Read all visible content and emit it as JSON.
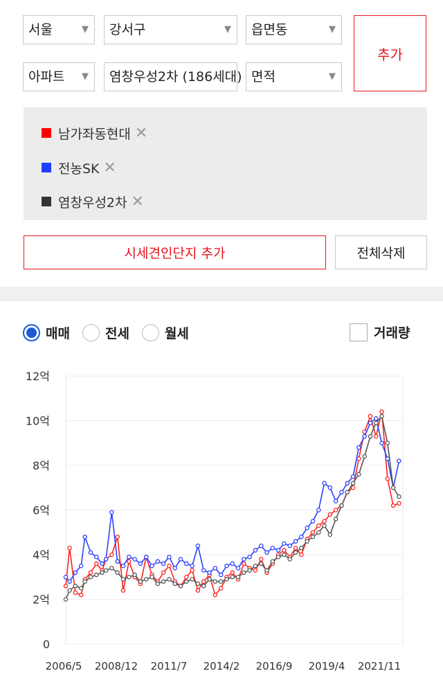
{
  "filters": {
    "city": "서울",
    "district": "강서구",
    "dong": "읍면동",
    "type": "아파트",
    "complex": "염창우성2차 (186세대)",
    "area": "면적",
    "add_label": "추가"
  },
  "compare_list": [
    {
      "name": "남가좌동현대",
      "color": "#ff0000"
    },
    {
      "name": "전농SK",
      "color": "#1f3fff"
    },
    {
      "name": "염창우성2차",
      "color": "#333333"
    }
  ],
  "remove_icon": "close-icon",
  "actions": {
    "add_complex": "시세견인단지 추가",
    "delete_all": "전체삭제"
  },
  "trade_types": [
    "매매",
    "전세",
    "월세"
  ],
  "selected_trade": "매매",
  "volume_label": "거래량",
  "chart_data": {
    "type": "line",
    "y_ticks": [
      "0",
      "2억",
      "4억",
      "6억",
      "8억",
      "10억",
      "12억"
    ],
    "y_range": [
      0,
      12
    ],
    "x_ticks": [
      "2006/5",
      "2008/12",
      "2011/7",
      "2014/2",
      "2016/9",
      "2019/4",
      "2021/11"
    ],
    "x_range": [
      2006.0,
      2023.6
    ],
    "grid": true,
    "series": [
      {
        "name": "남가좌동현대",
        "color": "#ff2020",
        "x": [
          2006.0,
          2006.2,
          2006.5,
          2006.8,
          2007.0,
          2007.3,
          2007.6,
          2007.9,
          2008.1,
          2008.4,
          2008.7,
          2009.0,
          2009.3,
          2009.6,
          2009.9,
          2010.2,
          2010.5,
          2010.8,
          2011.1,
          2011.4,
          2011.7,
          2012.0,
          2012.3,
          2012.6,
          2012.9,
          2013.2,
          2013.5,
          2013.8,
          2014.1,
          2014.4,
          2014.7,
          2015.0,
          2015.3,
          2015.6,
          2015.9,
          2016.2,
          2016.5,
          2016.8,
          2017.1,
          2017.4,
          2017.7,
          2018.0,
          2018.3,
          2018.6,
          2018.9,
          2019.2,
          2019.5,
          2019.8,
          2020.1,
          2020.4,
          2020.7,
          2021.0,
          2021.3,
          2021.6,
          2021.9,
          2022.2,
          2022.5,
          2022.8,
          2023.1,
          2023.4
        ],
        "y": [
          2.6,
          4.3,
          2.3,
          2.2,
          2.9,
          3.2,
          3.6,
          3.3,
          3.8,
          4.0,
          4.8,
          2.4,
          3.7,
          3.0,
          2.7,
          3.9,
          3.1,
          2.8,
          3.2,
          3.5,
          2.8,
          2.6,
          3.0,
          3.3,
          2.4,
          2.8,
          3.1,
          2.2,
          2.5,
          3.0,
          3.2,
          2.9,
          3.6,
          3.4,
          3.3,
          3.8,
          3.2,
          3.6,
          4.0,
          4.2,
          3.9,
          4.3,
          4.0,
          4.7,
          5.0,
          5.3,
          5.5,
          5.8,
          6.0,
          6.2,
          6.8,
          7.0,
          8.3,
          9.5,
          10.2,
          9.3,
          10.4,
          7.4,
          6.2,
          6.3
        ]
      },
      {
        "name": "전농SK",
        "color": "#2a3fff",
        "x": [
          2006.0,
          2006.2,
          2006.5,
          2006.8,
          2007.0,
          2007.3,
          2007.6,
          2007.9,
          2008.1,
          2008.4,
          2008.7,
          2009.0,
          2009.3,
          2009.6,
          2009.9,
          2010.2,
          2010.5,
          2010.8,
          2011.1,
          2011.4,
          2011.7,
          2012.0,
          2012.3,
          2012.6,
          2012.9,
          2013.2,
          2013.5,
          2013.8,
          2014.1,
          2014.4,
          2014.7,
          2015.0,
          2015.3,
          2015.6,
          2015.9,
          2016.2,
          2016.5,
          2016.8,
          2017.1,
          2017.4,
          2017.7,
          2018.0,
          2018.3,
          2018.6,
          2018.9,
          2019.2,
          2019.5,
          2019.8,
          2020.1,
          2020.4,
          2020.7,
          2021.0,
          2021.3,
          2021.6,
          2021.9,
          2022.2,
          2022.5,
          2022.8,
          2023.1,
          2023.4
        ],
        "y": [
          3.0,
          2.8,
          3.2,
          3.5,
          4.8,
          4.1,
          3.9,
          3.6,
          3.8,
          5.9,
          3.7,
          3.5,
          3.9,
          3.8,
          3.6,
          3.9,
          3.5,
          3.7,
          3.6,
          3.9,
          3.4,
          3.8,
          3.6,
          3.5,
          4.4,
          3.3,
          3.2,
          3.4,
          3.1,
          3.5,
          3.6,
          3.4,
          3.8,
          3.9,
          4.2,
          4.4,
          4.1,
          4.3,
          4.2,
          4.5,
          4.4,
          4.6,
          4.8,
          5.2,
          5.5,
          6.0,
          7.2,
          7.0,
          6.4,
          6.8,
          7.2,
          7.5,
          8.8,
          9.3,
          9.9,
          10.1,
          9.0,
          8.3,
          7.0,
          8.2
        ]
      },
      {
        "name": "염창우성2차",
        "color": "#555555",
        "x": [
          2006.0,
          2006.2,
          2006.5,
          2006.8,
          2007.0,
          2007.3,
          2007.6,
          2007.9,
          2008.1,
          2008.4,
          2008.7,
          2009.0,
          2009.3,
          2009.6,
          2009.9,
          2010.2,
          2010.5,
          2010.8,
          2011.1,
          2011.4,
          2011.7,
          2012.0,
          2012.3,
          2012.6,
          2012.9,
          2013.2,
          2013.5,
          2013.8,
          2014.1,
          2014.4,
          2014.7,
          2015.0,
          2015.3,
          2015.6,
          2015.9,
          2016.2,
          2016.5,
          2016.8,
          2017.1,
          2017.4,
          2017.7,
          2018.0,
          2018.3,
          2018.6,
          2018.9,
          2019.2,
          2019.5,
          2019.8,
          2020.1,
          2020.4,
          2020.7,
          2021.0,
          2021.3,
          2021.6,
          2021.9,
          2022.2,
          2022.5,
          2022.8,
          2023.1,
          2023.4
        ],
        "y": [
          2.0,
          2.4,
          2.6,
          2.5,
          2.8,
          3.0,
          3.1,
          3.2,
          3.3,
          3.4,
          3.2,
          2.9,
          3.0,
          3.1,
          2.8,
          2.9,
          3.0,
          2.7,
          2.8,
          2.9,
          2.7,
          2.6,
          2.8,
          2.9,
          2.7,
          2.6,
          2.9,
          2.8,
          2.8,
          2.9,
          3.0,
          3.0,
          3.2,
          3.3,
          3.5,
          3.6,
          3.3,
          3.7,
          3.9,
          4.0,
          3.8,
          4.1,
          4.3,
          4.6,
          4.8,
          5.0,
          5.3,
          4.9,
          5.6,
          6.2,
          6.8,
          7.2,
          7.6,
          8.4,
          9.3,
          9.9,
          10.2,
          9.0,
          7.0,
          6.6
        ]
      }
    ]
  }
}
